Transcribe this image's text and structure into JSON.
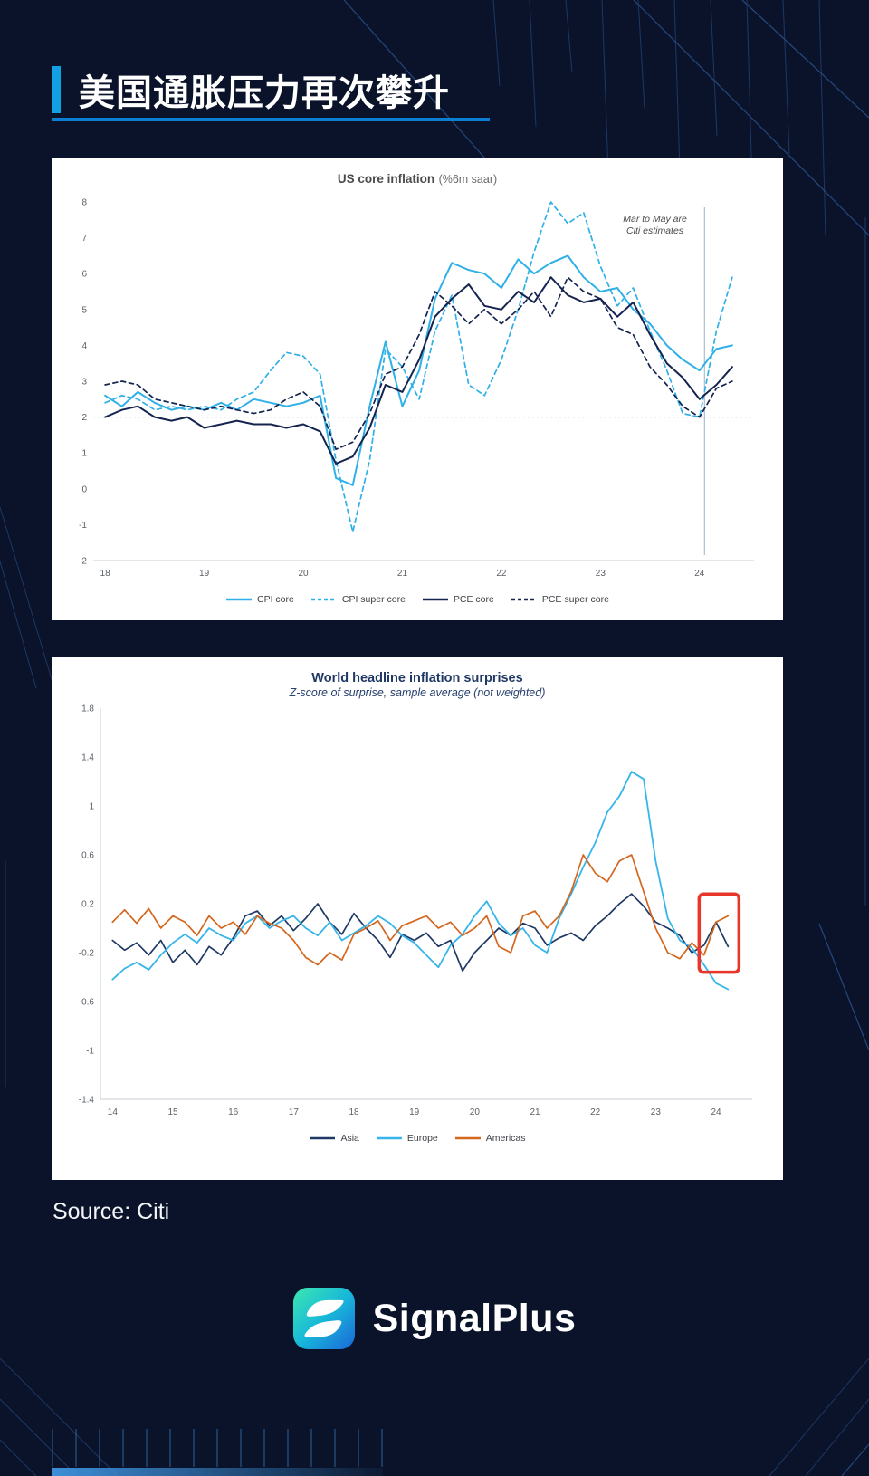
{
  "page": {
    "title": "美国通胀压力再次攀升",
    "source_label": "Source: Citi",
    "brand_name": "SignalPlus"
  },
  "colors": {
    "background": "#0a1329",
    "accent_bar": "#12a0e4",
    "light_blue": "#2fb0e8",
    "dark_navy": "#15234f",
    "orange": "#d4661e",
    "highlight_red": "#e8362b"
  },
  "chart_data": [
    {
      "type": "line",
      "title": "US core inflation",
      "title_note": "(%6m saar)",
      "annotation": {
        "lines": [
          "Mar to May are",
          "Citi estimates"
        ],
        "x": 2023.55,
        "y": 7.45
      },
      "xlim": [
        2017.88,
        2024.55
      ],
      "ylim": [
        -2,
        8
      ],
      "yticks": [
        8,
        7,
        6,
        5,
        4,
        3,
        2,
        1,
        0,
        -1,
        -2
      ],
      "xticks": [
        {
          "v": 2018,
          "label": "18"
        },
        {
          "v": 2019,
          "label": "19"
        },
        {
          "v": 2020,
          "label": "20"
        },
        {
          "v": 2021,
          "label": "21"
        },
        {
          "v": 2022,
          "label": "22"
        },
        {
          "v": 2023,
          "label": "23"
        },
        {
          "v": 2024,
          "label": "24"
        }
      ],
      "refline": 2,
      "divider_x": 2024.05,
      "grid": false,
      "left_axis": false,
      "legend_position": "bottom",
      "x": [
        2018.0,
        2018.17,
        2018.33,
        2018.5,
        2018.67,
        2018.83,
        2019.0,
        2019.17,
        2019.33,
        2019.5,
        2019.67,
        2019.83,
        2020.0,
        2020.17,
        2020.33,
        2020.5,
        2020.67,
        2020.83,
        2021.0,
        2021.17,
        2021.33,
        2021.5,
        2021.67,
        2021.83,
        2022.0,
        2022.17,
        2022.33,
        2022.5,
        2022.67,
        2022.83,
        2023.0,
        2023.17,
        2023.33,
        2023.5,
        2023.67,
        2023.83,
        2024.0,
        2024.17,
        2024.33
      ],
      "series": [
        {
          "name": "CPI core",
          "color": "#2fb0e8",
          "width": 2,
          "y": [
            2.6,
            2.3,
            2.7,
            2.4,
            2.2,
            2.3,
            2.2,
            2.4,
            2.2,
            2.5,
            2.4,
            2.3,
            2.4,
            2.6,
            0.3,
            0.1,
            2.3,
            4.1,
            2.3,
            3.3,
            5.3,
            6.3,
            6.1,
            6.0,
            5.6,
            6.4,
            6.0,
            6.3,
            6.5,
            5.9,
            5.5,
            5.6,
            5.0,
            4.6,
            4.0,
            3.6,
            3.3,
            3.9,
            4.0
          ]
        },
        {
          "name": "CPI super core",
          "color": "#2fb0e8",
          "width": 1.7,
          "dash": "5 4",
          "y": [
            2.4,
            2.6,
            2.5,
            2.2,
            2.3,
            2.2,
            2.3,
            2.2,
            2.5,
            2.7,
            3.3,
            3.8,
            3.7,
            3.2,
            0.8,
            -1.2,
            0.8,
            3.9,
            3.4,
            2.5,
            4.4,
            5.4,
            2.9,
            2.6,
            3.6,
            5.0,
            6.6,
            8.0,
            7.4,
            7.7,
            6.2,
            5.1,
            5.6,
            4.4,
            3.3,
            2.1,
            2.0,
            4.4,
            5.9
          ]
        },
        {
          "name": "PCE core",
          "color": "#15234f",
          "width": 2,
          "y": [
            2.0,
            2.2,
            2.3,
            2.0,
            1.9,
            2.0,
            1.7,
            1.8,
            1.9,
            1.8,
            1.8,
            1.7,
            1.8,
            1.6,
            0.7,
            0.9,
            1.7,
            2.9,
            2.7,
            3.6,
            4.8,
            5.3,
            5.7,
            5.1,
            5.0,
            5.5,
            5.2,
            5.9,
            5.4,
            5.2,
            5.3,
            4.8,
            5.2,
            4.3,
            3.5,
            3.1,
            2.5,
            2.9,
            3.4
          ]
        },
        {
          "name": "PCE super core",
          "color": "#15234f",
          "width": 1.7,
          "dash": "5 4",
          "y": [
            2.9,
            3.0,
            2.9,
            2.5,
            2.4,
            2.3,
            2.2,
            2.3,
            2.2,
            2.1,
            2.2,
            2.5,
            2.7,
            2.3,
            1.1,
            1.3,
            2.1,
            3.2,
            3.4,
            4.3,
            5.5,
            5.1,
            4.6,
            5.0,
            4.6,
            5.0,
            5.5,
            4.8,
            5.9,
            5.5,
            5.3,
            4.5,
            4.3,
            3.4,
            2.9,
            2.3,
            2.0,
            2.8,
            3.0
          ]
        }
      ]
    },
    {
      "type": "line",
      "title": "World headline inflation surprises",
      "subtitle": "Z-score of surprise, sample average (not weighted)",
      "xlim": [
        2013.8,
        2024.6
      ],
      "ylim": [
        -1.4,
        1.8
      ],
      "yticks": [
        1.8,
        1.4,
        1,
        0.6,
        0.2,
        -0.2,
        -0.6,
        -1,
        -1.4
      ],
      "xticks": [
        {
          "v": 2014,
          "label": "14"
        },
        {
          "v": 2015,
          "label": "15"
        },
        {
          "v": 2016,
          "label": "16"
        },
        {
          "v": 2017,
          "label": "17"
        },
        {
          "v": 2018,
          "label": "18"
        },
        {
          "v": 2019,
          "label": "19"
        },
        {
          "v": 2020,
          "label": "20"
        },
        {
          "v": 2021,
          "label": "21"
        },
        {
          "v": 2022,
          "label": "22"
        },
        {
          "v": 2023,
          "label": "23"
        },
        {
          "v": 2024,
          "label": "24"
        }
      ],
      "grid": false,
      "left_axis": true,
      "highlight": {
        "x0": 2023.72,
        "x1": 2024.38,
        "y0": -0.36,
        "y1": 0.28,
        "color": "#e8362b"
      },
      "legend_position": "bottom",
      "x": [
        2014.0,
        2014.2,
        2014.4,
        2014.6,
        2014.8,
        2015.0,
        2015.2,
        2015.4,
        2015.6,
        2015.8,
        2016.0,
        2016.2,
        2016.4,
        2016.6,
        2016.8,
        2017.0,
        2017.2,
        2017.4,
        2017.6,
        2017.8,
        2018.0,
        2018.2,
        2018.4,
        2018.6,
        2018.8,
        2019.0,
        2019.2,
        2019.4,
        2019.6,
        2019.8,
        2020.0,
        2020.2,
        2020.4,
        2020.6,
        2020.8,
        2021.0,
        2021.2,
        2021.4,
        2021.6,
        2021.8,
        2022.0,
        2022.2,
        2022.4,
        2022.6,
        2022.8,
        2023.0,
        2023.2,
        2023.4,
        2023.6,
        2023.8,
        2024.0,
        2024.2
      ],
      "series": [
        {
          "name": "Asia",
          "color": "#1f3864",
          "width": 1.7,
          "y": [
            -0.1,
            -0.18,
            -0.12,
            -0.22,
            -0.1,
            -0.28,
            -0.18,
            -0.3,
            -0.15,
            -0.22,
            -0.08,
            0.1,
            0.14,
            0.02,
            0.1,
            -0.02,
            0.08,
            0.2,
            0.05,
            -0.05,
            0.12,
            0.0,
            -0.1,
            -0.24,
            -0.05,
            -0.1,
            -0.04,
            -0.15,
            -0.1,
            -0.35,
            -0.2,
            -0.1,
            0.0,
            -0.06,
            0.04,
            0.0,
            -0.14,
            -0.08,
            -0.04,
            -0.1,
            0.02,
            0.1,
            0.2,
            0.28,
            0.18,
            0.05,
            0.0,
            -0.06,
            -0.2,
            -0.14,
            0.05,
            -0.15
          ]
        },
        {
          "name": "Europe",
          "color": "#35b5e9",
          "width": 1.8,
          "y": [
            -0.42,
            -0.33,
            -0.28,
            -0.34,
            -0.22,
            -0.12,
            -0.05,
            -0.12,
            0.0,
            -0.06,
            -0.1,
            0.04,
            0.1,
            0.0,
            0.06,
            0.1,
            0.0,
            -0.06,
            0.05,
            -0.1,
            -0.04,
            0.02,
            0.1,
            0.04,
            -0.06,
            -0.12,
            -0.22,
            -0.32,
            -0.14,
            -0.05,
            0.1,
            0.22,
            0.04,
            -0.06,
            0.0,
            -0.14,
            -0.2,
            0.08,
            0.28,
            0.5,
            0.7,
            0.95,
            1.08,
            1.28,
            1.22,
            0.55,
            0.08,
            -0.1,
            -0.16,
            -0.3,
            -0.45,
            -0.5
          ]
        },
        {
          "name": "Americas",
          "color": "#d4661e",
          "width": 1.7,
          "y": [
            0.05,
            0.15,
            0.04,
            0.16,
            0.0,
            0.1,
            0.05,
            -0.06,
            0.1,
            0.0,
            0.05,
            -0.05,
            0.1,
            0.04,
            0.0,
            -0.1,
            -0.24,
            -0.3,
            -0.2,
            -0.26,
            -0.05,
            0.0,
            0.06,
            -0.1,
            0.02,
            0.06,
            0.1,
            0.0,
            0.05,
            -0.06,
            0.0,
            0.1,
            -0.15,
            -0.2,
            0.1,
            0.14,
            0.0,
            0.1,
            0.3,
            0.6,
            0.45,
            0.38,
            0.55,
            0.6,
            0.3,
            0.0,
            -0.2,
            -0.25,
            -0.12,
            -0.22,
            0.05,
            0.1
          ]
        }
      ]
    }
  ]
}
